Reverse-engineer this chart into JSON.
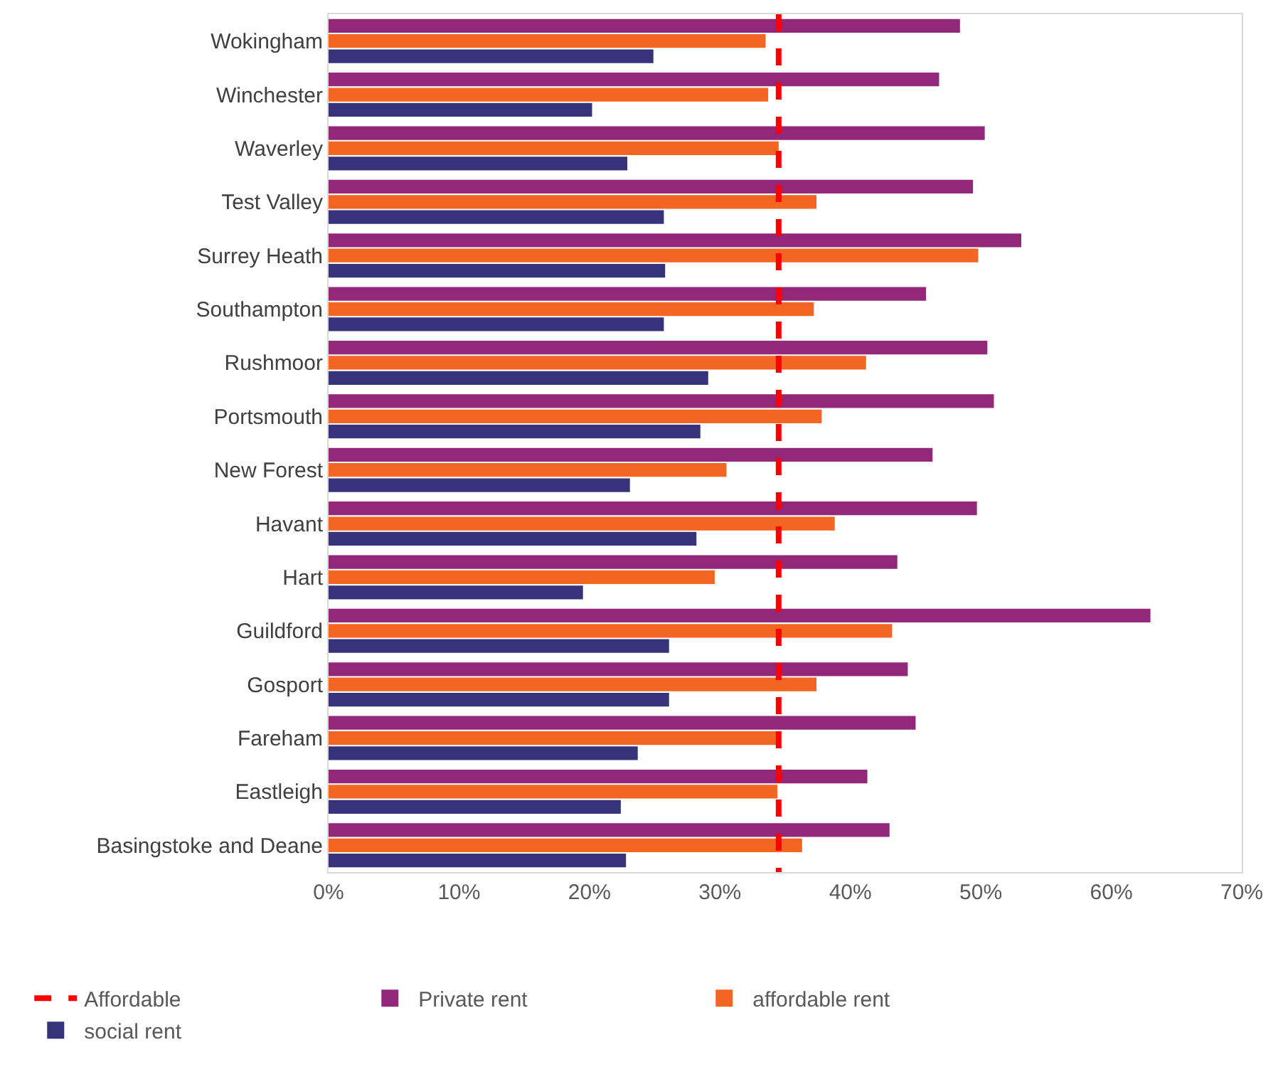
{
  "chart_data": {
    "type": "bar",
    "orientation": "horizontal",
    "categories": [
      "Wokingham",
      "Winchester",
      "Waverley",
      "Test Valley",
      "Surrey Heath",
      "Southampton",
      "Rushmoor",
      "Portsmouth",
      "New Forest",
      "Havant",
      "Hart",
      "Guildford",
      "Gosport",
      "Fareham",
      "Eastleigh",
      "Basingstoke and Deane"
    ],
    "series": [
      {
        "name": "Private rent",
        "color": "#93277a",
        "values": [
          48.4,
          46.8,
          50.3,
          49.4,
          53.1,
          45.8,
          50.5,
          51.0,
          46.3,
          49.7,
          43.6,
          63.0,
          44.4,
          45.0,
          41.3,
          43.0
        ]
      },
      {
        "name": "affordable rent",
        "color": "#f26522",
        "values": [
          33.5,
          33.7,
          34.5,
          37.4,
          49.8,
          37.2,
          41.2,
          37.8,
          30.5,
          38.8,
          29.6,
          43.2,
          37.4,
          34.4,
          34.4,
          36.3
        ]
      },
      {
        "name": "social rent",
        "color": "#35347a",
        "values": [
          24.9,
          20.2,
          22.9,
          25.7,
          25.8,
          25.7,
          29.1,
          28.5,
          23.1,
          28.2,
          19.5,
          26.1,
          26.1,
          23.7,
          22.4,
          22.8
        ]
      }
    ],
    "xlim": [
      0,
      70
    ],
    "xticks": [
      {
        "value": 0,
        "label": "0%"
      },
      {
        "value": 10,
        "label": "10%"
      },
      {
        "value": 20,
        "label": "20%"
      },
      {
        "value": 30,
        "label": "30%"
      },
      {
        "value": 40,
        "label": "40%"
      },
      {
        "value": 50,
        "label": "50%"
      },
      {
        "value": 60,
        "label": "60%"
      },
      {
        "value": 70,
        "label": "70%"
      }
    ],
    "ref_lines": [
      {
        "axis": "x",
        "value": 34.5,
        "label": "Affordable",
        "color": "#ff0000",
        "line_style": "dashed"
      }
    ],
    "grid": false,
    "legend": "bottom"
  }
}
